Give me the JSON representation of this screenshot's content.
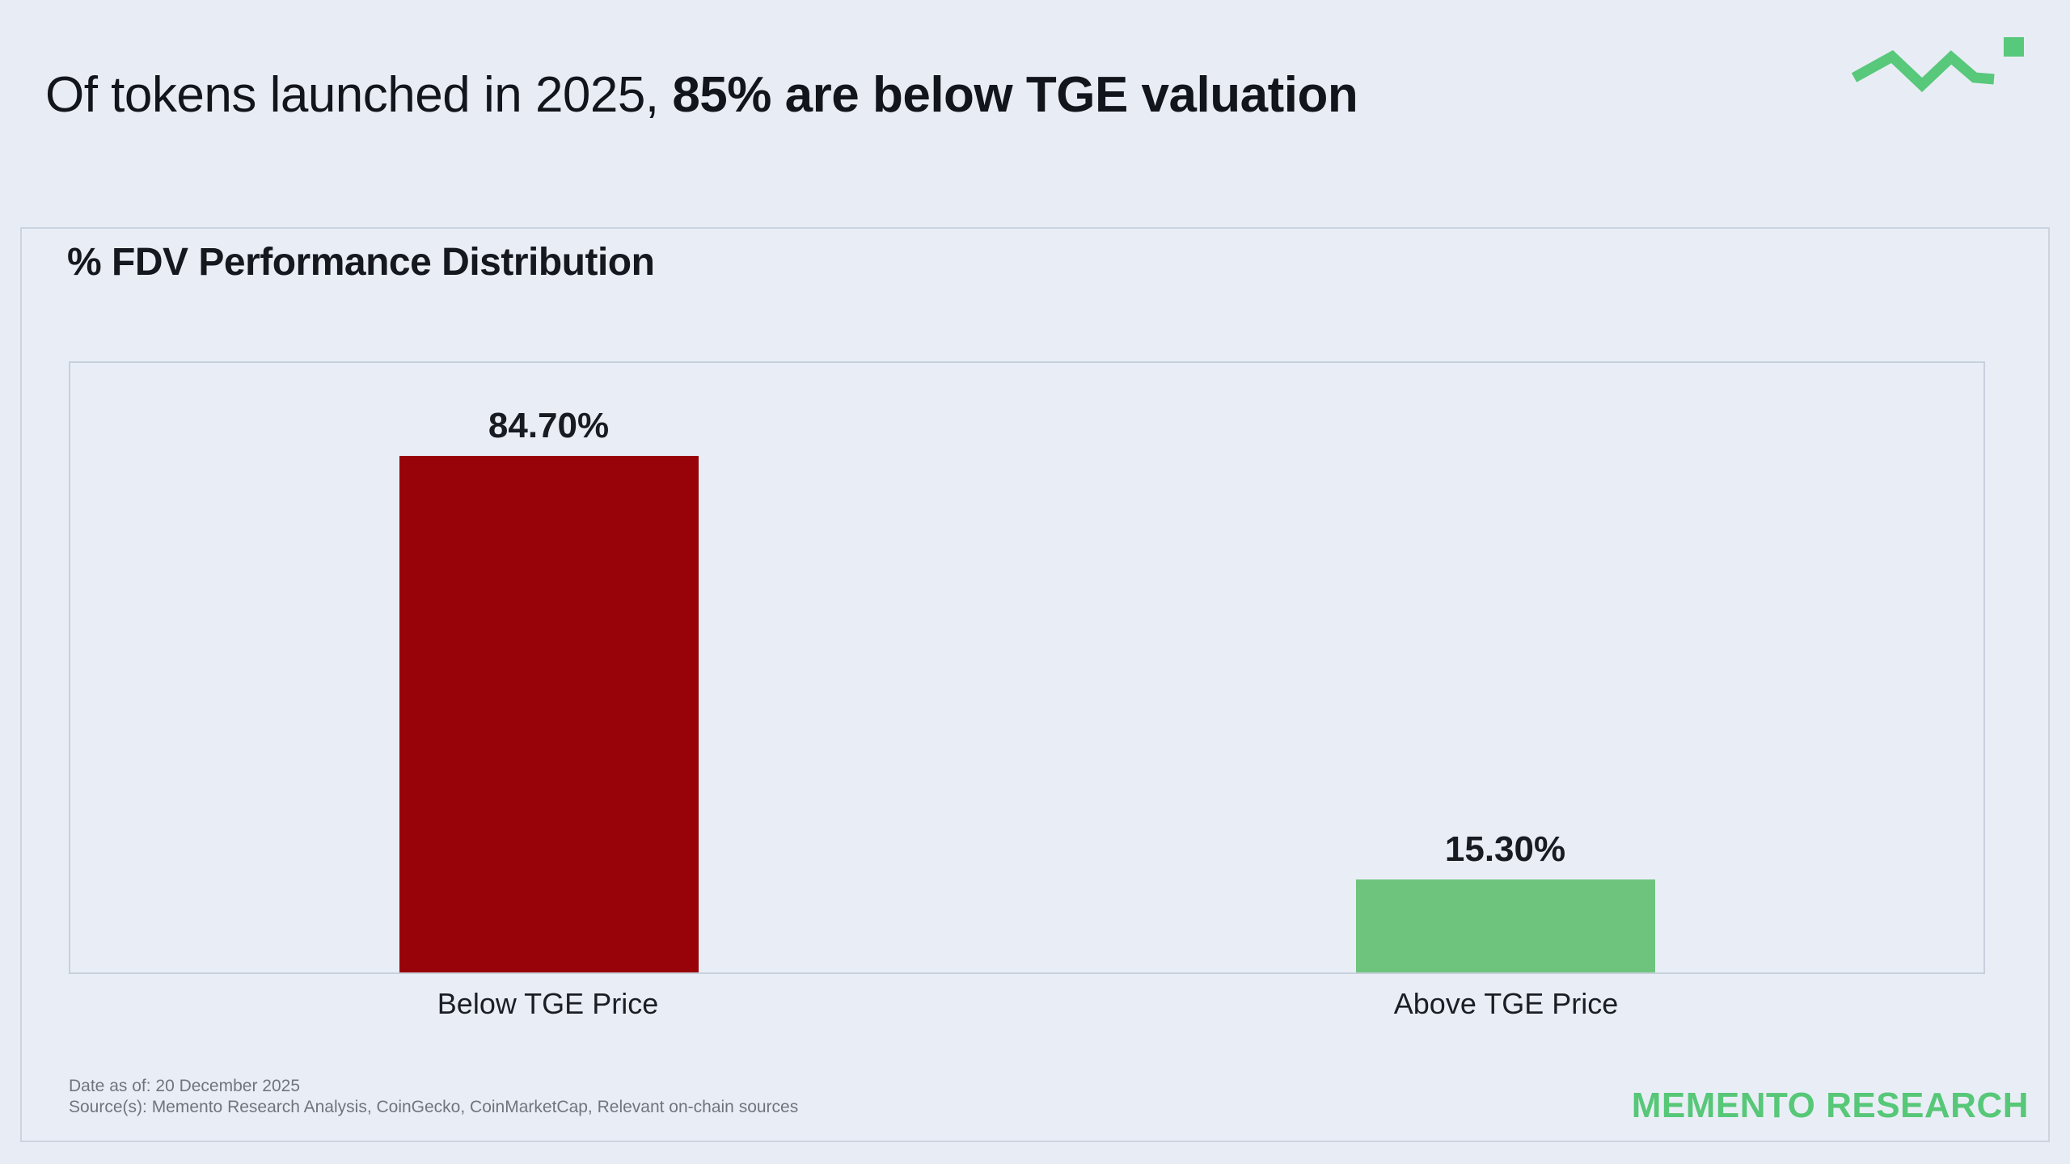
{
  "header": {
    "title_regular": "Of tokens launched in 2025, ",
    "title_bold": "85% are below TGE valuation"
  },
  "brand": {
    "wordmark": "MEMENTO RESEARCH",
    "logo_icon": "zigzag-trendline-with-square",
    "accent_green": "#57c778",
    "logo_green": "#58c87a"
  },
  "footer": {
    "date_line": "Date as of: 20 December 2025",
    "source_line": "Source(s): Memento Research Analysis, CoinGecko, CoinMarketCap, Relevant on-chain sources"
  },
  "colors": {
    "page_background": "#e8edf5",
    "card_border": "#cbd4df",
    "plot_border": "#c7d0db"
  },
  "chart_data": {
    "type": "bar",
    "title": "% FDV Performance Distribution",
    "categories": [
      "Below TGE Price",
      "Above TGE Price"
    ],
    "values": [
      84.7,
      15.3
    ],
    "value_labels": [
      "84.70%",
      "15.30%"
    ],
    "series_colors": [
      "#98030a",
      "#6ec47d"
    ],
    "ylim": [
      0,
      100
    ],
    "xlabel": "",
    "ylabel": "",
    "grid": false,
    "legend_position": "none",
    "value_labels_position": "above-bar"
  }
}
